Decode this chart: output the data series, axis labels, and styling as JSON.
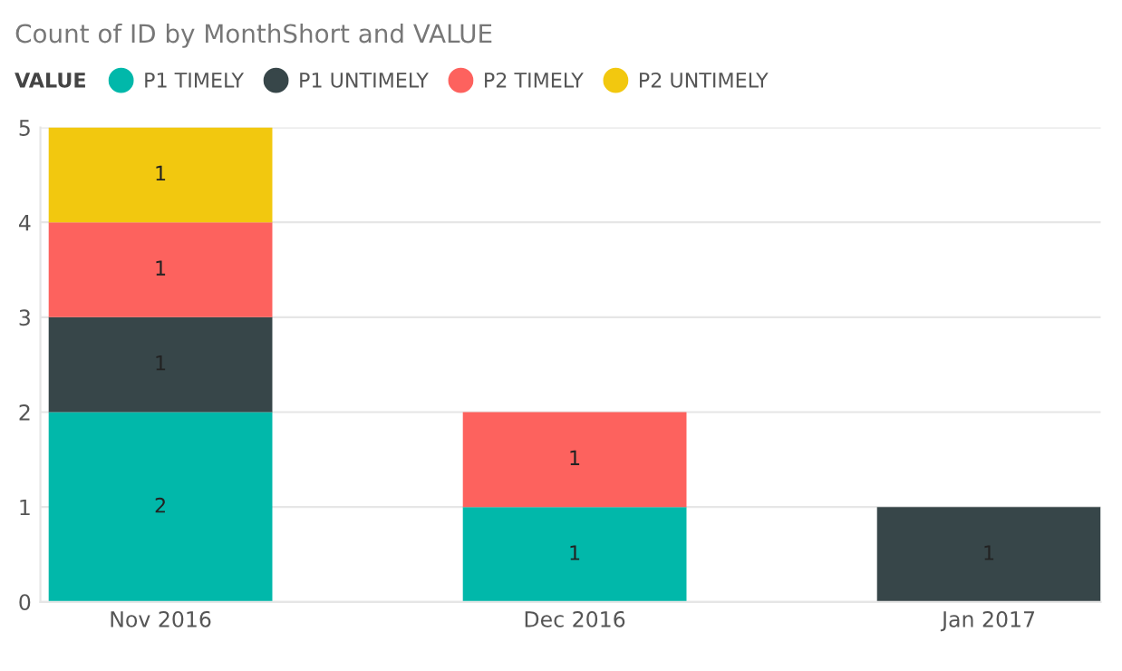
{
  "chart_data": {
    "type": "bar",
    "title": "Count of ID by MonthShort and VALUE",
    "legend_title": "VALUE",
    "categories": [
      "Nov 2016",
      "Dec 2016",
      "Jan 2017"
    ],
    "series": [
      {
        "name": "P1 TIMELY",
        "color": "#01b8aa",
        "values": [
          2,
          1,
          null
        ]
      },
      {
        "name": "P1 UNTIMELY",
        "color": "#374649",
        "values": [
          1,
          null,
          1
        ]
      },
      {
        "name": "P2 TIMELY",
        "color": "#fd625e",
        "values": [
          1,
          1,
          null
        ]
      },
      {
        "name": "P2 UNTIMELY",
        "color": "#f2c80f",
        "values": [
          1,
          null,
          null
        ]
      }
    ],
    "stacked": true,
    "ylim": [
      0,
      5
    ],
    "yticks": [
      0,
      1,
      2,
      3,
      4,
      5
    ],
    "grid": "y",
    "legend": "top left",
    "data_labels": true
  }
}
